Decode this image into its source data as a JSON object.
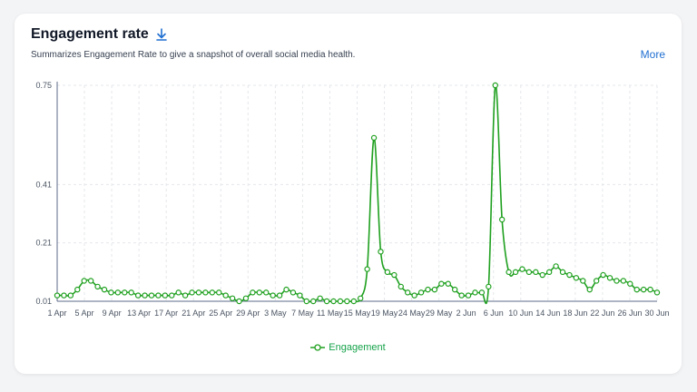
{
  "header": {
    "title": "Engagement rate",
    "subtitle": "Summarizes Engagement Rate to give a snapshot of overall social media health.",
    "more_label": "More"
  },
  "icons": {
    "download": "download-icon"
  },
  "colors": {
    "series": "#1fa01f",
    "accent": "#1f6fd1",
    "grid": "#e5e7eb"
  },
  "chart_data": {
    "type": "line",
    "grid": true,
    "legend_position": "bottom",
    "y_ticks": [
      0.01,
      0.21,
      0.41,
      0.75
    ],
    "ylim": [
      0.01,
      0.75
    ],
    "x_tick_labels": [
      "1 Apr",
      "5 Apr",
      "9 Apr",
      "13 Apr",
      "17 Apr",
      "21 Apr",
      "25 Apr",
      "29 Apr",
      "3 May",
      "7 May",
      "11 May",
      "15 May",
      "19 May",
      "24 May",
      "29 May",
      "2 Jun",
      "6 Jun",
      "10 Jun",
      "14 Jun",
      "18 Jun",
      "22 Jun",
      "26 Jun",
      "30 Jun"
    ],
    "series": [
      {
        "name": "Engagement",
        "values": [
          0.03,
          0.03,
          0.03,
          0.05,
          0.08,
          0.08,
          0.06,
          0.05,
          0.04,
          0.04,
          0.04,
          0.04,
          0.03,
          0.03,
          0.03,
          0.03,
          0.03,
          0.03,
          0.04,
          0.03,
          0.04,
          0.04,
          0.04,
          0.04,
          0.04,
          0.03,
          0.02,
          0.01,
          0.02,
          0.04,
          0.04,
          0.04,
          0.03,
          0.03,
          0.05,
          0.04,
          0.03,
          0.01,
          0.01,
          0.02,
          0.01,
          0.01,
          0.01,
          0.01,
          0.01,
          0.02,
          0.12,
          0.57,
          0.18,
          0.11,
          0.1,
          0.06,
          0.04,
          0.03,
          0.04,
          0.05,
          0.05,
          0.07,
          0.07,
          0.05,
          0.03,
          0.03,
          0.04,
          0.04,
          0.06,
          0.75,
          0.29,
          0.11,
          0.11,
          0.12,
          0.11,
          0.11,
          0.1,
          0.11,
          0.13,
          0.11,
          0.1,
          0.09,
          0.08,
          0.05,
          0.08,
          0.1,
          0.09,
          0.08,
          0.08,
          0.07,
          0.05,
          0.05,
          0.05,
          0.04
        ]
      }
    ]
  }
}
